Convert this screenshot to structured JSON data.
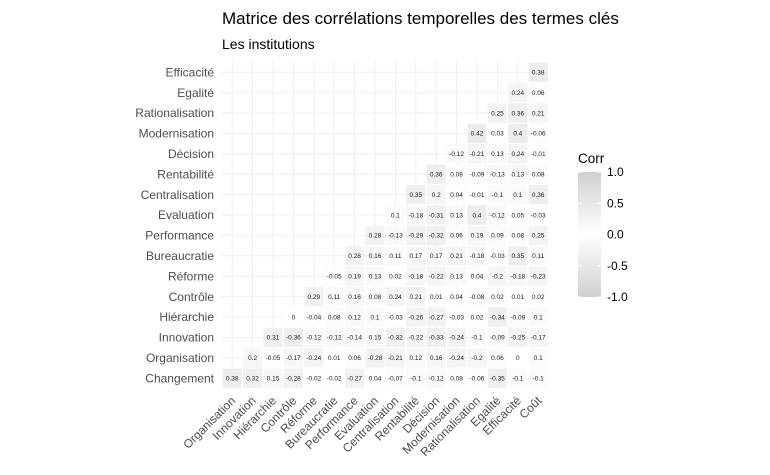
{
  "chart_data": {
    "type": "heatmap",
    "title": "Matrice des corrélations temporelles des termes clés",
    "subtitle": "Les institutions",
    "x_labels": [
      "Organisation",
      "Innovation",
      "Hiérarchie",
      "Contrôle",
      "Réforme",
      "Bureaucratie",
      "Performance",
      "Evaluation",
      "Centralisation",
      "Rentabilité",
      "Décision",
      "Modernisation",
      "Rationalisation",
      "Egalité",
      "Efficacité",
      "Coût"
    ],
    "y_labels": [
      "Changement",
      "Organisation",
      "Innovation",
      "Hiérarchie",
      "Contrôle",
      "Réforme",
      "Bureaucratie",
      "Performance",
      "Evaluation",
      "Centralisation",
      "Rentabilité",
      "Décision",
      "Modernisation",
      "Rationalisation",
      "Egalité",
      "Efficacité"
    ],
    "rows": [
      [
        "0.38",
        "0.32",
        "0.15",
        "-0.28",
        "-0.02",
        "-0.02",
        "-0.27",
        "0.04",
        "-0.07",
        "-0.1",
        "-0.12",
        "0.08",
        "-0.06",
        "-0.35",
        "-0.1",
        "-0.1"
      ],
      [
        "",
        "0.2",
        "-0.05",
        "-0.17",
        "-0.24",
        "0.01",
        "0.06",
        "-0.28",
        "-0.21",
        "0.12",
        "0.16",
        "-0.24",
        "-0.2",
        "0.06",
        "0",
        "0.1"
      ],
      [
        "",
        "",
        "0.31",
        "-0.36",
        "-0.12",
        "-0.12",
        "-0.14",
        "0.15",
        "-0.32",
        "-0.22",
        "-0.33",
        "-0.24",
        "-0.1",
        "-0.09",
        "-0.25",
        "-0.17"
      ],
      [
        "",
        "",
        "",
        "0",
        "-0.04",
        "0.08",
        "0.12",
        "0.1",
        "-0.03",
        "-0.26",
        "-0.27",
        "-0.03",
        "0.02",
        "-0.34",
        "-0.09",
        "0.1"
      ],
      [
        "",
        "",
        "",
        "",
        "0.29",
        "0.11",
        "0.16",
        "0.08",
        "0.24",
        "0.21",
        "0.01",
        "0.04",
        "-0.08",
        "0.02",
        "0.01",
        "0.02"
      ],
      [
        "",
        "",
        "",
        "",
        "",
        "-0.05",
        "0.19",
        "0.13",
        "0.02",
        "-0.18",
        "-0.22",
        "0.13",
        "0.04",
        "-0.2",
        "-0.18",
        "-0.23"
      ],
      [
        "",
        "",
        "",
        "",
        "",
        "",
        "0.28",
        "0.16",
        "0.11",
        "0.17",
        "0.17",
        "0.21",
        "-0.18",
        "-0.03",
        "0.35",
        "0.11"
      ],
      [
        "",
        "",
        "",
        "",
        "",
        "",
        "",
        "0.28",
        "-0.13",
        "-0.29",
        "-0.32",
        "0.06",
        "0.19",
        "0.09",
        "0.08",
        "0.25"
      ],
      [
        "",
        "",
        "",
        "",
        "",
        "",
        "",
        "",
        "0.1",
        "-0.18",
        "-0.31",
        "0.13",
        "0.4",
        "-0.12",
        "0.05",
        "-0.03"
      ],
      [
        "",
        "",
        "",
        "",
        "",
        "",
        "",
        "",
        "",
        "0.35",
        "0.2",
        "0.04",
        "-0.01",
        "-0.1",
        "0.1",
        "0.36"
      ],
      [
        "",
        "",
        "",
        "",
        "",
        "",
        "",
        "",
        "",
        "",
        "0.36",
        "0.08",
        "-0.09",
        "-0.13",
        "0.13",
        "0.08"
      ],
      [
        "",
        "",
        "",
        "",
        "",
        "",
        "",
        "",
        "",
        "",
        "",
        "-0.12",
        "-0.21",
        "0.13",
        "0.24",
        "-0.01"
      ],
      [
        "",
        "",
        "",
        "",
        "",
        "",
        "",
        "",
        "",
        "",
        "",
        "",
        "0.42",
        "0.03",
        "0.4",
        "-0.06"
      ],
      [
        "",
        "",
        "",
        "",
        "",
        "",
        "",
        "",
        "",
        "",
        "",
        "",
        "",
        "0.25",
        "0.36",
        "0.21"
      ],
      [
        "",
        "",
        "",
        "",
        "",
        "",
        "",
        "",
        "",
        "",
        "",
        "",
        "",
        "",
        "0.24",
        "0.06"
      ],
      [
        "",
        "",
        "",
        "",
        "",
        "",
        "",
        "",
        "",
        "",
        "",
        "",
        "",
        "",
        "",
        "0.38"
      ]
    ],
    "legend": {
      "title": "Corr",
      "ticks": [
        "1.0",
        "0.5",
        "0.0",
        "-0.5",
        "-1.0"
      ],
      "placement": "right"
    },
    "grid": true
  }
}
